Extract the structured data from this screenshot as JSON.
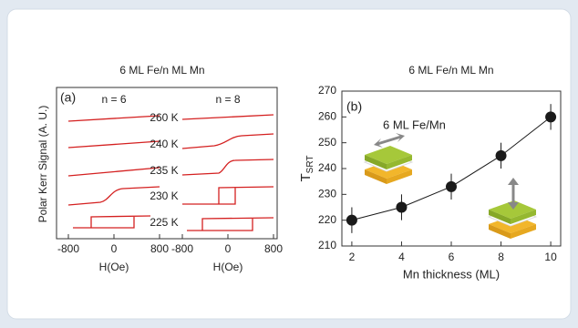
{
  "chart_data": [
    {
      "type": "kerr-loops",
      "title": "6 ML Fe/n ML Mn",
      "panel_label": "(a)",
      "ylabel": "Polar Kerr Signal (A. U.)",
      "temperatures": [
        "260 K",
        "240 K",
        "235 K",
        "230 K",
        "225 K"
      ],
      "panels": [
        {
          "label": "n = 6",
          "xlabel": "H(Oe)",
          "xlim": [
            -800,
            800
          ],
          "xticks": [
            -800,
            0,
            800
          ]
        },
        {
          "label": "n = 8",
          "xlabel": "H(Oe)",
          "xlim": [
            -800,
            800
          ],
          "xticks": [
            -800,
            0,
            800
          ]
        }
      ]
    },
    {
      "type": "scatter",
      "title": "6 ML Fe/n ML Mn",
      "panel_label": "(b)",
      "annotation": "6 ML Fe/Mn",
      "xlabel": "Mn thickness  (ML)",
      "ylabel": "T",
      "ylabel_sub": "SRT",
      "x": [
        2,
        4,
        6,
        8,
        10
      ],
      "values": [
        220,
        225,
        233,
        245,
        260
      ],
      "errors": [
        5,
        5,
        5,
        5,
        5
      ],
      "color": "#1a1a1a",
      "xlim": [
        1.6,
        10.4
      ],
      "ylim": [
        210,
        270
      ],
      "xticks": [
        2,
        4,
        6,
        8,
        10
      ],
      "yticks": [
        210,
        220,
        230,
        240,
        250,
        260,
        270
      ]
    }
  ]
}
